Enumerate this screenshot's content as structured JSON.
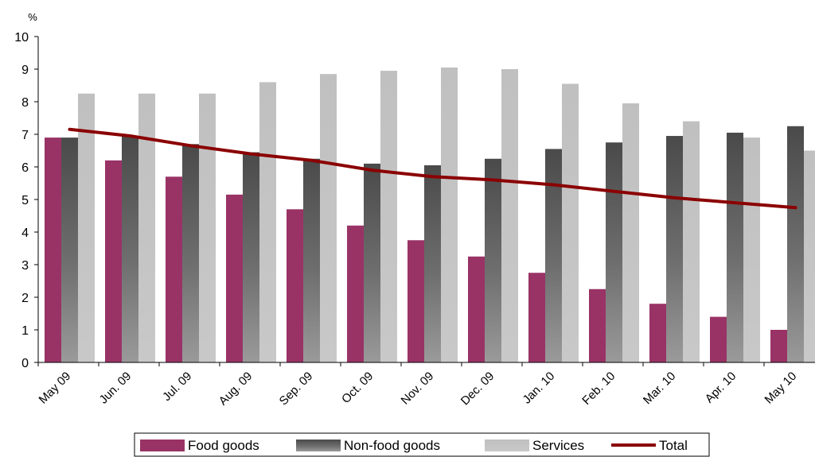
{
  "chart_data": {
    "type": "bar",
    "title": "",
    "xlabel": "",
    "ylabel": "%",
    "ylim": [
      0,
      10
    ],
    "yticks": [
      0,
      1,
      2,
      3,
      4,
      5,
      6,
      7,
      8,
      9,
      10
    ],
    "grid": false,
    "legend_position": "bottom",
    "categories": [
      "May 09",
      "Jun. 09",
      "Jul. 09",
      "Aug. 09",
      "Sep. 09",
      "Oct. 09",
      "Nov. 09",
      "Dec. 09",
      "Jan. 10",
      "Feb. 10",
      "Mar. 10",
      "Apr. 10",
      "May 10"
    ],
    "series": [
      {
        "name": "Food goods",
        "kind": "bar",
        "color": "#993366",
        "values": [
          6.9,
          6.2,
          5.7,
          5.15,
          4.7,
          4.2,
          3.75,
          3.25,
          2.75,
          2.25,
          1.8,
          1.4,
          1.0
        ]
      },
      {
        "name": "Non-food goods",
        "kind": "bar",
        "color": "#5f5f5f",
        "values": [
          6.9,
          6.95,
          6.7,
          6.45,
          6.25,
          6.1,
          6.05,
          6.25,
          6.55,
          6.75,
          6.95,
          7.05,
          7.25
        ]
      },
      {
        "name": "Services",
        "kind": "bar",
        "color": "#c0c0c0",
        "values": [
          8.25,
          8.25,
          8.25,
          8.6,
          8.85,
          8.95,
          9.05,
          9.0,
          8.55,
          7.95,
          7.4,
          6.9,
          6.5
        ]
      },
      {
        "name": "Total",
        "kind": "line",
        "color": "#8b0000",
        "values": [
          7.15,
          6.95,
          6.65,
          6.4,
          6.2,
          5.9,
          5.7,
          5.6,
          5.45,
          5.25,
          5.05,
          4.9,
          4.75
        ]
      }
    ]
  }
}
